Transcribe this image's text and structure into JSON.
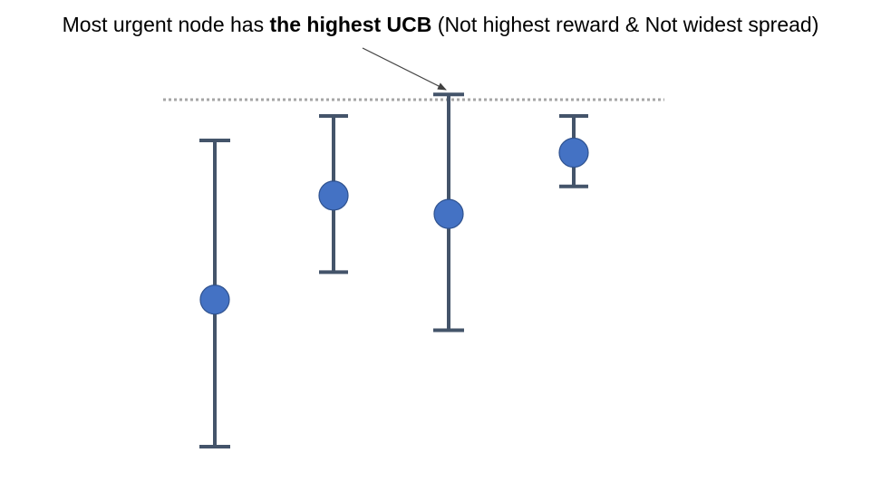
{
  "caption": {
    "prefix": "Most urgent node has ",
    "bold": "the highest UCB",
    "suffix": " (Not highest reward & Not widest spread)"
  },
  "colors": {
    "bar": "#44546a",
    "node_fill": "#4472c4",
    "node_stroke": "#2f528f",
    "reference_line": "#a6a6a6",
    "arrow": "#404040"
  },
  "nodes": [
    {
      "id": "node-1",
      "mean": 0.48,
      "lower": 0.0,
      "upper": 1.0
    },
    {
      "id": "node-2",
      "mean": 0.82,
      "lower": 0.57,
      "upper": 1.08
    },
    {
      "id": "node-3",
      "mean": 0.76,
      "lower": 0.38,
      "upper": 1.15
    },
    {
      "id": "node-4",
      "mean": 0.96,
      "lower": 0.85,
      "upper": 1.08
    }
  ],
  "highest_ucb_node": "node-3"
}
